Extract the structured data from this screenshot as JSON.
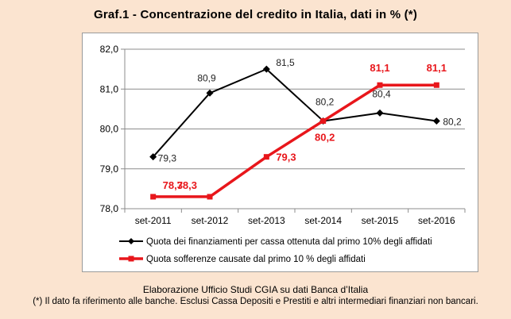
{
  "title": "Graf.1 - Concentrazione del credito in Italia, dati in % (*)",
  "source": "Elaborazione Ufficio Studi CGIA su dati Banca d’Italia",
  "note": "(*) Il dato fa riferimento alle banche. Esclusi Cassa Depositi e Prestiti e altri intermediari finanziari non bancari.",
  "chart_data": {
    "type": "line",
    "categories": [
      "set-2011",
      "set-2012",
      "set-2013",
      "set-2014",
      "set-2015",
      "set-2016"
    ],
    "ylim": [
      78.0,
      82.0
    ],
    "yticks": [
      "78,0",
      "79,0",
      "80,0",
      "81,0",
      "82,0"
    ],
    "grid": true,
    "legend_position": "bottom",
    "series": [
      {
        "name": "Quota dei finanziamenti per cassa ottenuta dal primo 10% degli affidati",
        "color": "#000000",
        "marker": "diamond",
        "values": [
          79.3,
          80.9,
          81.5,
          80.2,
          80.4,
          80.2
        ],
        "labels": [
          "79,3",
          "80,9",
          "81,5",
          "80,2",
          "80,4",
          "80,2"
        ]
      },
      {
        "name": "Quota sofferenze causate dal primo 10 % degli affidati",
        "color": "#e8161b",
        "marker": "square",
        "values": [
          78.3,
          78.3,
          79.3,
          80.2,
          81.1,
          81.1
        ],
        "labels": [
          "78,3",
          "78,3",
          "79,3",
          "80,2",
          "81,1",
          "81,1"
        ]
      }
    ]
  }
}
